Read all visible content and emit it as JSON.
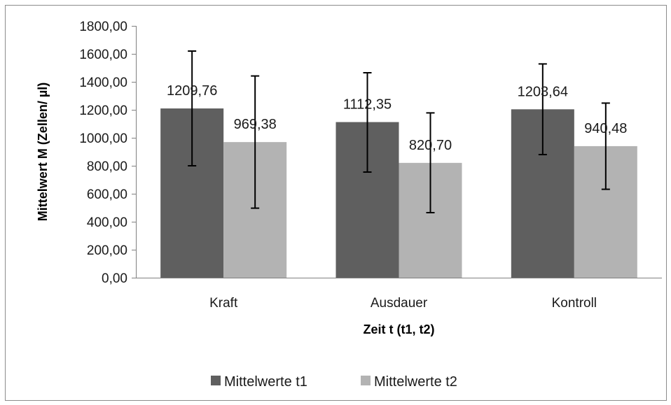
{
  "chart_data": {
    "type": "bar",
    "categories": [
      "Kraft",
      "Ausdauer",
      "Kontroll"
    ],
    "series": [
      {
        "name": "Mittelwerte t1",
        "color": "#5f5f5f",
        "values": [
          1209.76,
          1112.35,
          1203.64
        ],
        "labels": [
          "1209,76",
          "1112,35",
          "1203,64"
        ],
        "err_low": [
          800,
          755,
          880
        ],
        "err_high": [
          1620,
          1465,
          1528
        ]
      },
      {
        "name": "Mittelwerte t2",
        "color": "#b3b3b3",
        "values": [
          969.38,
          820.7,
          940.48
        ],
        "labels": [
          "969,38",
          "820,70",
          "940,48"
        ],
        "err_low": [
          497,
          465,
          632
        ],
        "err_high": [
          1442,
          1178,
          1248
        ]
      }
    ],
    "xlabel": "Zeit t (t1, t2)",
    "ylabel": "Mittelwert M (Zellen/ µl)",
    "ylim": [
      0,
      1800
    ],
    "yticks": [
      0,
      200,
      400,
      600,
      800,
      1000,
      1200,
      1400,
      1600,
      1800
    ],
    "ytick_labels": [
      "0,00",
      "200,00",
      "400,00",
      "600,00",
      "800,00",
      "1000,00",
      "1200,00",
      "1400,00",
      "1600,00",
      "1800,00"
    ],
    "grid": false,
    "legend_position": "bottom"
  }
}
